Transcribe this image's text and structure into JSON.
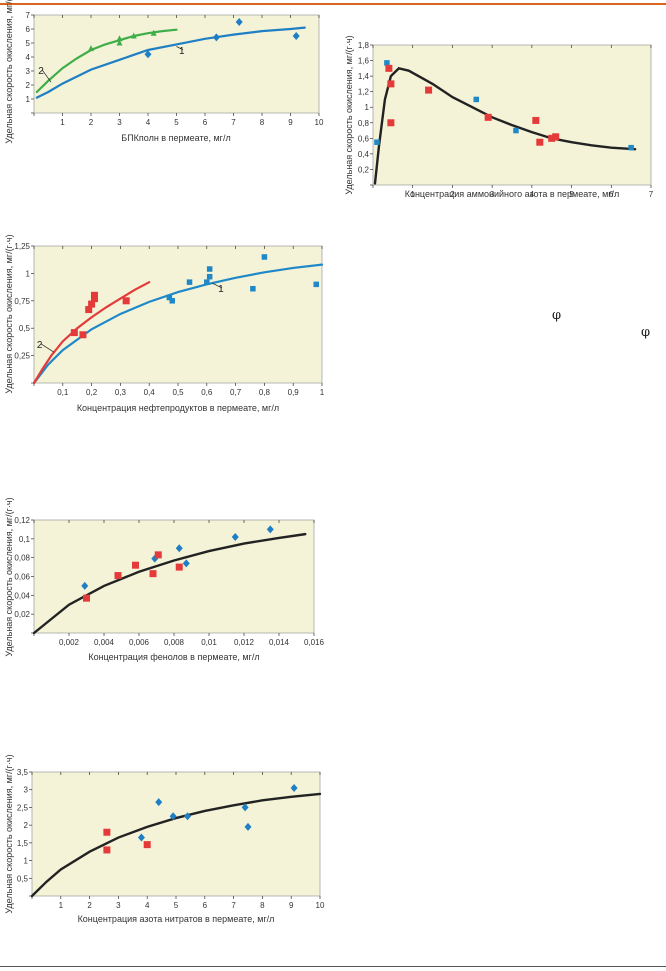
{
  "colors": {
    "plot_bg": "#f4f3d7",
    "blue": "#1f7fc4",
    "green": "#3fae49",
    "red": "#e43a3a",
    "dark": "#222222",
    "square_blue": "#1f88c8"
  },
  "side_symbols": [
    "φ",
    "φ"
  ],
  "chart_data": [
    {
      "type": "scatter",
      "xlabel": "БПКполн в пермеате, мг/л",
      "ylabel": "Удельная скорость окисления, мг/(г·ч)",
      "xlim": [
        0,
        10
      ],
      "ylim": [
        0,
        7
      ],
      "xticks": [
        0,
        1,
        2,
        3,
        4,
        5,
        6,
        7,
        8,
        9,
        10
      ],
      "yticks": [
        0,
        1,
        2,
        3,
        4,
        5,
        6,
        7
      ],
      "xtick_labels": [
        "",
        "1",
        "2",
        "3",
        "4",
        "5",
        "6",
        "7",
        "8",
        "9",
        "10"
      ],
      "ytick_labels": [
        "",
        "1",
        "2",
        "3",
        "4",
        "5",
        "6",
        "7"
      ],
      "curve_labels": [
        {
          "text": "1",
          "x": 5.3,
          "y": 4.3,
          "px": 5.0,
          "py": 4.75
        },
        {
          "text": "2",
          "x": 0.15,
          "y": 2.85,
          "px": 0.6,
          "py": 2.2
        }
      ],
      "series": [
        {
          "color": "blue",
          "marker": "diamond",
          "points": [
            [
              4.0,
              4.2
            ],
            [
              6.4,
              5.4
            ],
            [
              7.2,
              6.5
            ],
            [
              9.2,
              5.5
            ]
          ],
          "curve": [
            [
              0.1,
              1.1
            ],
            [
              0.5,
              1.5
            ],
            [
              1,
              2.1
            ],
            [
              2,
              3.1
            ],
            [
              3,
              3.8
            ],
            [
              4,
              4.5
            ],
            [
              5,
              4.9
            ],
            [
              6,
              5.3
            ],
            [
              7,
              5.6
            ],
            [
              8,
              5.85
            ],
            [
              9,
              6.0
            ],
            [
              9.5,
              6.1
            ]
          ]
        },
        {
          "color": "green",
          "marker": "triangle",
          "points": [
            [
              2.0,
              4.6
            ],
            [
              3.0,
              5.3
            ],
            [
              3.0,
              5.0
            ],
            [
              3.5,
              5.5
            ],
            [
              4.2,
              5.7
            ]
          ],
          "curve": [
            [
              0.1,
              1.5
            ],
            [
              0.5,
              2.3
            ],
            [
              1,
              3.2
            ],
            [
              1.5,
              3.9
            ],
            [
              2,
              4.5
            ],
            [
              2.5,
              4.9
            ],
            [
              3,
              5.2
            ],
            [
              3.5,
              5.5
            ],
            [
              4,
              5.7
            ],
            [
              4.5,
              5.85
            ],
            [
              5,
              5.95
            ]
          ]
        }
      ]
    },
    {
      "type": "scatter",
      "xlabel": "Концентрация аммонийного азота в пермеате, мг/л",
      "ylabel": "Удельная скорость окисления, мг/(г·ч)",
      "xlim": [
        0,
        7
      ],
      "ylim": [
        0,
        1.8
      ],
      "xticks": [
        0,
        1,
        2,
        3,
        4,
        5,
        6,
        7
      ],
      "yticks": [
        0,
        0.2,
        0.4,
        0.6,
        0.8,
        1.0,
        1.2,
        1.4,
        1.6,
        1.8
      ],
      "xtick_labels": [
        "",
        "1",
        "2",
        "3",
        "4",
        "5",
        "6",
        "7"
      ],
      "ytick_labels": [
        "",
        "0,2",
        "0,4",
        "0,6",
        "0,8",
        "1",
        "1,2",
        "1,4",
        "1,6",
        "1,8"
      ],
      "curve_labels": [],
      "series": [
        {
          "color": "square_blue",
          "marker": "square",
          "points": [
            [
              0.1,
              0.55
            ],
            [
              0.35,
              1.57
            ],
            [
              2.6,
              1.1
            ],
            [
              3.6,
              0.7
            ],
            [
              6.5,
              0.48
            ]
          ],
          "curve": []
        },
        {
          "color": "red",
          "marker": "square",
          "points": [
            [
              0.4,
              1.5
            ],
            [
              0.45,
              1.3
            ],
            [
              0.45,
              0.8
            ],
            [
              1.4,
              1.22
            ],
            [
              2.9,
              0.87
            ],
            [
              4.1,
              0.83
            ],
            [
              4.2,
              0.55
            ],
            [
              4.5,
              0.6
            ],
            [
              4.6,
              0.62
            ]
          ],
          "curve": []
        },
        {
          "color": "dark",
          "marker": "none",
          "points": [],
          "curve": [
            [
              0.05,
              0.02
            ],
            [
              0.15,
              0.5
            ],
            [
              0.3,
              1.1
            ],
            [
              0.45,
              1.4
            ],
            [
              0.65,
              1.5
            ],
            [
              0.9,
              1.47
            ],
            [
              1.5,
              1.3
            ],
            [
              2,
              1.13
            ],
            [
              2.5,
              1.0
            ],
            [
              3,
              0.87
            ],
            [
              3.5,
              0.77
            ],
            [
              4,
              0.68
            ],
            [
              4.5,
              0.6
            ],
            [
              5,
              0.55
            ],
            [
              5.5,
              0.51
            ],
            [
              6,
              0.48
            ],
            [
              6.6,
              0.46
            ]
          ]
        }
      ]
    },
    {
      "type": "scatter",
      "xlabel": "Концентрация нефтепродуктов в пермеате, мг/л",
      "ylabel": "Удельная скорость окисления, мг/(г·ч)",
      "xlim": [
        0,
        1
      ],
      "ylim": [
        0,
        1.25
      ],
      "xticks": [
        0,
        0.1,
        0.2,
        0.3,
        0.4,
        0.5,
        0.6,
        0.7,
        0.8,
        0.9,
        1.0
      ],
      "yticks": [
        0,
        0.25,
        0.5,
        0.75,
        1.0,
        1.25
      ],
      "xtick_labels": [
        "",
        "0,1",
        "0,2",
        "0,3",
        "0,4",
        "0,5",
        "0,6",
        "0,7",
        "0,8",
        "0,9",
        "1"
      ],
      "ytick_labels": [
        "",
        "0,25",
        "0,5",
        "0,75",
        "1",
        "1,25"
      ],
      "curve_labels": [
        {
          "text": "1",
          "x": 0.66,
          "y": 0.84,
          "px": 0.62,
          "py": 0.91
        },
        {
          "text": "2",
          "x": 0.01,
          "y": 0.33,
          "px": 0.07,
          "py": 0.28
        }
      ],
      "series": [
        {
          "color": "square_blue",
          "marker": "square",
          "points": [
            [
              0.47,
              0.78
            ],
            [
              0.48,
              0.75
            ],
            [
              0.54,
              0.92
            ],
            [
              0.6,
              0.92
            ],
            [
              0.61,
              0.97
            ],
            [
              0.61,
              1.04
            ],
            [
              0.76,
              0.86
            ],
            [
              0.8,
              1.15
            ],
            [
              0.98,
              0.9
            ]
          ],
          "curve": [
            [
              0.0,
              0.0
            ],
            [
              0.05,
              0.17
            ],
            [
              0.1,
              0.3
            ],
            [
              0.2,
              0.49
            ],
            [
              0.3,
              0.63
            ],
            [
              0.4,
              0.74
            ],
            [
              0.5,
              0.83
            ],
            [
              0.6,
              0.9
            ],
            [
              0.7,
              0.96
            ],
            [
              0.8,
              1.01
            ],
            [
              0.9,
              1.05
            ],
            [
              1.0,
              1.08
            ]
          ]
        },
        {
          "color": "red",
          "marker": "square",
          "points": [
            [
              0.14,
              0.46
            ],
            [
              0.17,
              0.44
            ],
            [
              0.19,
              0.67
            ],
            [
              0.2,
              0.72
            ],
            [
              0.21,
              0.8
            ],
            [
              0.21,
              0.77
            ],
            [
              0.32,
              0.75
            ]
          ],
          "curve": [
            [
              0.0,
              0.0
            ],
            [
              0.03,
              0.13
            ],
            [
              0.06,
              0.25
            ],
            [
              0.1,
              0.38
            ],
            [
              0.15,
              0.5
            ],
            [
              0.2,
              0.6
            ],
            [
              0.25,
              0.69
            ],
            [
              0.3,
              0.77
            ],
            [
              0.35,
              0.85
            ],
            [
              0.4,
              0.92
            ]
          ]
        }
      ]
    },
    {
      "type": "scatter",
      "xlabel": "Концентрация фенолов в пермеате, мг/л",
      "ylabel": "Удельная скорость окисления, мг/(г·ч)",
      "xlim": [
        0,
        0.016
      ],
      "ylim": [
        0,
        0.12
      ],
      "xticks": [
        0,
        0.002,
        0.004,
        0.006,
        0.008,
        0.01,
        0.012,
        0.014,
        0.016
      ],
      "yticks": [
        0,
        0.02,
        0.04,
        0.06,
        0.08,
        0.1,
        0.12
      ],
      "xtick_labels": [
        "",
        "0,002",
        "0,004",
        "0,006",
        "0,008",
        "0,01",
        "0,012",
        "0,014",
        "0,016"
      ],
      "ytick_labels": [
        "",
        "0,02",
        "0,04",
        "0,06",
        "0,08",
        "0,1",
        "0,12"
      ],
      "curve_labels": [],
      "series": [
        {
          "color": "blue",
          "marker": "diamond",
          "points": [
            [
              0.0029,
              0.05
            ],
            [
              0.0069,
              0.079
            ],
            [
              0.0083,
              0.09
            ],
            [
              0.0087,
              0.074
            ],
            [
              0.0115,
              0.102
            ],
            [
              0.0135,
              0.11
            ]
          ],
          "curve": []
        },
        {
          "color": "red",
          "marker": "square",
          "points": [
            [
              0.003,
              0.037
            ],
            [
              0.0048,
              0.061
            ],
            [
              0.0058,
              0.072
            ],
            [
              0.0068,
              0.063
            ],
            [
              0.0071,
              0.083
            ],
            [
              0.0083,
              0.07
            ]
          ],
          "curve": []
        },
        {
          "color": "dark",
          "marker": "none",
          "points": [],
          "curve": [
            [
              0.0,
              0.0
            ],
            [
              0.002,
              0.03
            ],
            [
              0.004,
              0.05
            ],
            [
              0.006,
              0.065
            ],
            [
              0.008,
              0.077
            ],
            [
              0.01,
              0.087
            ],
            [
              0.012,
              0.095
            ],
            [
              0.014,
              0.101
            ],
            [
              0.0155,
              0.105
            ]
          ]
        }
      ]
    },
    {
      "type": "scatter",
      "xlabel": "Концентрация азота нитратов в пермеате, мг/л",
      "ylabel": "Удельная скорость окисления, мг/(г·ч)",
      "xlim": [
        0,
        10
      ],
      "ylim": [
        0,
        3.5
      ],
      "xticks": [
        0,
        1,
        2,
        3,
        4,
        5,
        6,
        7,
        8,
        9,
        10
      ],
      "yticks": [
        0,
        0.5,
        1,
        1.5,
        2,
        2.5,
        3,
        3.5
      ],
      "xtick_labels": [
        "",
        "1",
        "2",
        "3",
        "4",
        "5",
        "6",
        "7",
        "8",
        "9",
        "10"
      ],
      "ytick_labels": [
        "",
        "0,5",
        "1",
        "1,5",
        "2",
        "2,5",
        "3",
        "3,5"
      ],
      "curve_labels": [],
      "series": [
        {
          "color": "blue",
          "marker": "diamond",
          "points": [
            [
              3.8,
              1.65
            ],
            [
              4.4,
              2.65
            ],
            [
              4.9,
              2.25
            ],
            [
              5.4,
              2.25
            ],
            [
              7.4,
              2.5
            ],
            [
              7.5,
              1.95
            ],
            [
              9.1,
              3.05
            ]
          ],
          "curve": []
        },
        {
          "color": "red",
          "marker": "square",
          "points": [
            [
              2.6,
              1.8
            ],
            [
              2.6,
              1.3
            ],
            [
              4.0,
              1.45
            ]
          ],
          "curve": []
        },
        {
          "color": "dark",
          "marker": "none",
          "points": [],
          "curve": [
            [
              0.0,
              0.0
            ],
            [
              0.5,
              0.4
            ],
            [
              1,
              0.75
            ],
            [
              2,
              1.25
            ],
            [
              3,
              1.65
            ],
            [
              4,
              1.95
            ],
            [
              5,
              2.2
            ],
            [
              6,
              2.4
            ],
            [
              7,
              2.56
            ],
            [
              8,
              2.7
            ],
            [
              9,
              2.8
            ],
            [
              10,
              2.88
            ]
          ]
        }
      ]
    }
  ]
}
